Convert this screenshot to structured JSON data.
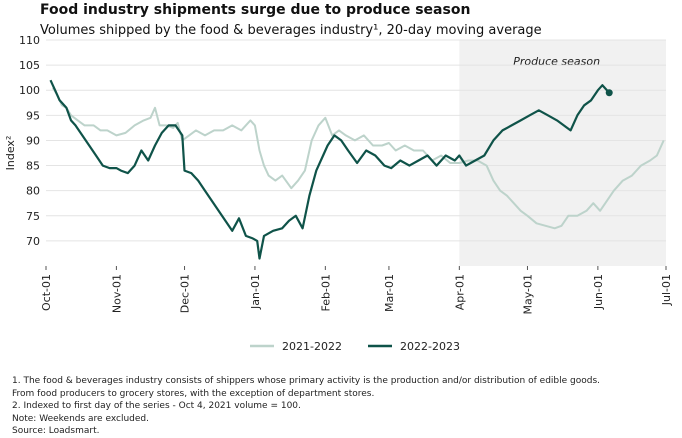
{
  "header": {
    "title": "Food industry shipments surge due to produce season",
    "subtitle": "Volumes shipped by the food & beverages industry¹, 20-day moving average"
  },
  "notes": [
    "1. The food & beverages industry consists of shippers whose primary activity is the production and/or distribution of edible goods.",
    "From food producers to grocery stores, with the exception of department stores.",
    "2. Indexed to first day of the series - Oct 4, 2021 volume = 100.",
    "Note: Weekends are excluded.",
    "Source: Loadsmart."
  ],
  "colors": {
    "series_2021": "#bdd3cb",
    "series_2022": "#0f5349",
    "shade": "#f1f1f1",
    "grid": "#e4e4e4"
  },
  "chart_data": {
    "type": "line",
    "title": "Food industry shipments surge due to produce season",
    "subtitle": "Volumes shipped by the food & beverages industry¹, 20-day moving average",
    "xlabel": "",
    "ylabel": "Index²",
    "ylim": [
      65,
      110
    ],
    "yticks": [
      70,
      75,
      80,
      85,
      90,
      95,
      100,
      105,
      110
    ],
    "x_axis": {
      "range": [
        "Oct-01",
        "Jul-01"
      ],
      "tick_labels": [
        "Oct-01",
        "Nov-01",
        "Dec-01",
        "Jan-01",
        "Feb-01",
        "Mar-01",
        "Apr-01",
        "May-01",
        "Jun-01",
        "Jul-01"
      ]
    },
    "grid": true,
    "legend": "bottom-center",
    "annotation": {
      "text": "Produce season",
      "x_range": [
        "Apr-01",
        "Jul-01"
      ]
    },
    "series": [
      {
        "name": "2021-2022",
        "points": [
          [
            "Oct-04",
            100.5
          ],
          [
            "Oct-06",
            99
          ],
          [
            "Oct-08",
            97
          ],
          [
            "Oct-10",
            96.5
          ],
          [
            "Oct-12",
            95
          ],
          [
            "Oct-15",
            94
          ],
          [
            "Oct-18",
            93
          ],
          [
            "Oct-22",
            93
          ],
          [
            "Oct-25",
            92
          ],
          [
            "Oct-28",
            92
          ],
          [
            "Nov-01",
            91
          ],
          [
            "Nov-05",
            91.5
          ],
          [
            "Nov-09",
            93
          ],
          [
            "Nov-13",
            94
          ],
          [
            "Nov-16",
            94.5
          ],
          [
            "Nov-18",
            96.5
          ],
          [
            "Nov-20",
            93
          ],
          [
            "Nov-23",
            93
          ],
          [
            "Nov-26",
            92.5
          ],
          [
            "Nov-28",
            93.5
          ],
          [
            "Nov-30",
            90
          ],
          [
            "Dec-03",
            91
          ],
          [
            "Dec-06",
            92
          ],
          [
            "Dec-10",
            91
          ],
          [
            "Dec-14",
            92
          ],
          [
            "Dec-18",
            92
          ],
          [
            "Dec-22",
            93
          ],
          [
            "Dec-26",
            92
          ],
          [
            "Dec-30",
            94
          ],
          [
            "Jan-01",
            93
          ],
          [
            "Jan-03",
            88
          ],
          [
            "Jan-05",
            85
          ],
          [
            "Jan-07",
            83
          ],
          [
            "Jan-10",
            82
          ],
          [
            "Jan-13",
            83
          ],
          [
            "Jan-17",
            80.5
          ],
          [
            "Jan-20",
            82
          ],
          [
            "Jan-23",
            84
          ],
          [
            "Jan-26",
            90
          ],
          [
            "Jan-29",
            93
          ],
          [
            "Feb-01",
            94.5
          ],
          [
            "Feb-04",
            91
          ],
          [
            "Feb-07",
            92
          ],
          [
            "Feb-10",
            91
          ],
          [
            "Feb-14",
            90
          ],
          [
            "Feb-18",
            91
          ],
          [
            "Feb-22",
            89
          ],
          [
            "Feb-26",
            89
          ],
          [
            "Mar-01",
            89.5
          ],
          [
            "Mar-04",
            88
          ],
          [
            "Mar-08",
            89
          ],
          [
            "Mar-12",
            88
          ],
          [
            "Mar-16",
            88
          ],
          [
            "Mar-20",
            86
          ],
          [
            "Mar-24",
            87
          ],
          [
            "Mar-28",
            85.5
          ],
          [
            "Apr-01",
            85.5
          ],
          [
            "Apr-05",
            86
          ],
          [
            "Apr-09",
            86
          ],
          [
            "Apr-13",
            85
          ],
          [
            "Apr-16",
            82
          ],
          [
            "Apr-19",
            80
          ],
          [
            "Apr-22",
            79
          ],
          [
            "Apr-25",
            77.5
          ],
          [
            "Apr-28",
            76
          ],
          [
            "May-01",
            75
          ],
          [
            "May-05",
            73.5
          ],
          [
            "May-09",
            73
          ],
          [
            "May-13",
            72.5
          ],
          [
            "May-16",
            73
          ],
          [
            "May-19",
            75
          ],
          [
            "May-23",
            75
          ],
          [
            "May-27",
            76
          ],
          [
            "May-30",
            77.5
          ],
          [
            "Jun-02",
            76
          ],
          [
            "Jun-05",
            78
          ],
          [
            "Jun-08",
            80
          ],
          [
            "Jun-12",
            82
          ],
          [
            "Jun-16",
            83
          ],
          [
            "Jun-20",
            85
          ],
          [
            "Jun-24",
            86
          ],
          [
            "Jun-27",
            87
          ],
          [
            "Jun-30",
            90
          ]
        ]
      },
      {
        "name": "2022-2023",
        "points": [
          [
            "Oct-03",
            102
          ],
          [
            "Oct-05",
            100
          ],
          [
            "Oct-07",
            98
          ],
          [
            "Oct-10",
            96.5
          ],
          [
            "Oct-12",
            94
          ],
          [
            "Oct-14",
            93
          ],
          [
            "Oct-17",
            91
          ],
          [
            "Oct-20",
            89
          ],
          [
            "Oct-23",
            87
          ],
          [
            "Oct-26",
            85
          ],
          [
            "Oct-29",
            84.5
          ],
          [
            "Nov-01",
            84.5
          ],
          [
            "Nov-03",
            84
          ],
          [
            "Nov-06",
            83.5
          ],
          [
            "Nov-09",
            85
          ],
          [
            "Nov-12",
            88
          ],
          [
            "Nov-15",
            86
          ],
          [
            "Nov-18",
            89
          ],
          [
            "Nov-21",
            91.5
          ],
          [
            "Nov-24",
            93
          ],
          [
            "Nov-27",
            93
          ],
          [
            "Nov-30",
            91
          ],
          [
            "Dec-01",
            84
          ],
          [
            "Dec-04",
            83.5
          ],
          [
            "Dec-07",
            82
          ],
          [
            "Dec-10",
            80
          ],
          [
            "Dec-13",
            78
          ],
          [
            "Dec-16",
            76
          ],
          [
            "Dec-19",
            74
          ],
          [
            "Dec-22",
            72
          ],
          [
            "Dec-25",
            74.5
          ],
          [
            "Dec-28",
            71
          ],
          [
            "Dec-31",
            70.5
          ],
          [
            "Jan-02",
            70
          ],
          [
            "Jan-03",
            66.5
          ],
          [
            "Jan-05",
            71
          ],
          [
            "Jan-09",
            72
          ],
          [
            "Jan-13",
            72.5
          ],
          [
            "Jan-16",
            74
          ],
          [
            "Jan-19",
            75
          ],
          [
            "Jan-22",
            72.5
          ],
          [
            "Jan-25",
            79
          ],
          [
            "Jan-28",
            84
          ],
          [
            "Jan-31",
            87
          ],
          [
            "Feb-02",
            89
          ],
          [
            "Feb-05",
            91
          ],
          [
            "Feb-08",
            90
          ],
          [
            "Feb-11",
            88
          ],
          [
            "Feb-15",
            85.5
          ],
          [
            "Feb-19",
            88
          ],
          [
            "Feb-23",
            87
          ],
          [
            "Feb-27",
            85
          ],
          [
            "Mar-02",
            84.5
          ],
          [
            "Mar-06",
            86
          ],
          [
            "Mar-10",
            85
          ],
          [
            "Mar-14",
            86
          ],
          [
            "Mar-18",
            87
          ],
          [
            "Mar-22",
            85
          ],
          [
            "Mar-26",
            87
          ],
          [
            "Mar-30",
            86
          ],
          [
            "Apr-01",
            87
          ],
          [
            "Apr-04",
            85
          ],
          [
            "Apr-08",
            86
          ],
          [
            "Apr-12",
            87
          ],
          [
            "Apr-16",
            90
          ],
          [
            "Apr-20",
            92
          ],
          [
            "Apr-24",
            93
          ],
          [
            "Apr-28",
            94
          ],
          [
            "May-02",
            95
          ],
          [
            "May-06",
            96
          ],
          [
            "May-10",
            95
          ],
          [
            "May-14",
            94
          ],
          [
            "May-17",
            93
          ],
          [
            "May-20",
            92
          ],
          [
            "May-23",
            95
          ],
          [
            "May-26",
            97
          ],
          [
            "May-29",
            98
          ],
          [
            "Jun-01",
            100
          ],
          [
            "Jun-03",
            101
          ],
          [
            "Jun-06",
            99.5
          ]
        ]
      }
    ]
  }
}
